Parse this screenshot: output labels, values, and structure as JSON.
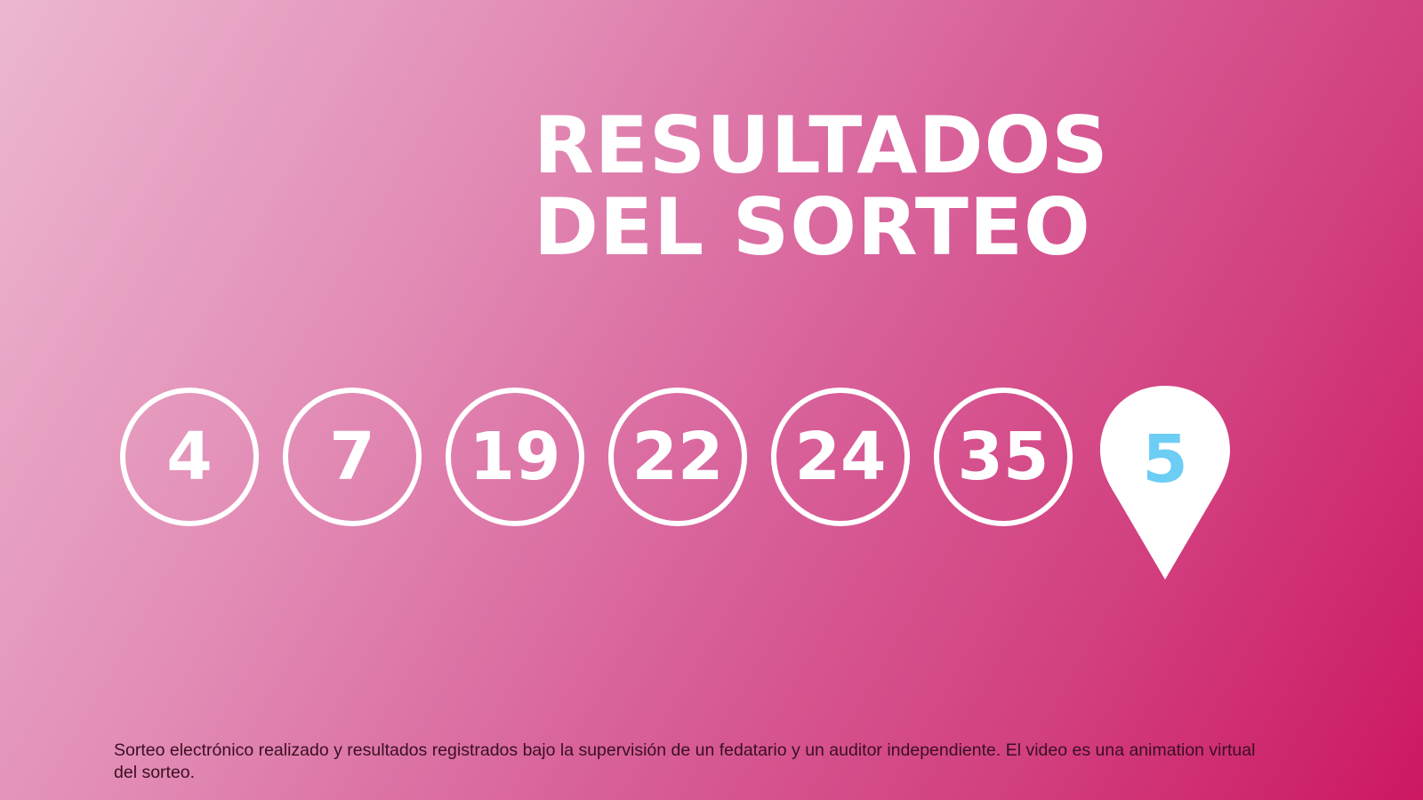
{
  "title": {
    "line1": "RESULTADOS",
    "line2": "DEL SORTEO"
  },
  "numbers": [
    "4",
    "7",
    "19",
    "22",
    "24",
    "35"
  ],
  "bonus": {
    "number": "5",
    "icon": "map-pin-icon",
    "color": "#6ccdf5"
  },
  "footer": "Sorteo electrónico realizado y resultados registrados bajo la supervisión de un fedatario y un auditor independiente. El video es una animation virtual del sorteo.",
  "colors": {
    "gradient_start": "#ecb7d0",
    "gradient_end": "#cc1862"
  }
}
